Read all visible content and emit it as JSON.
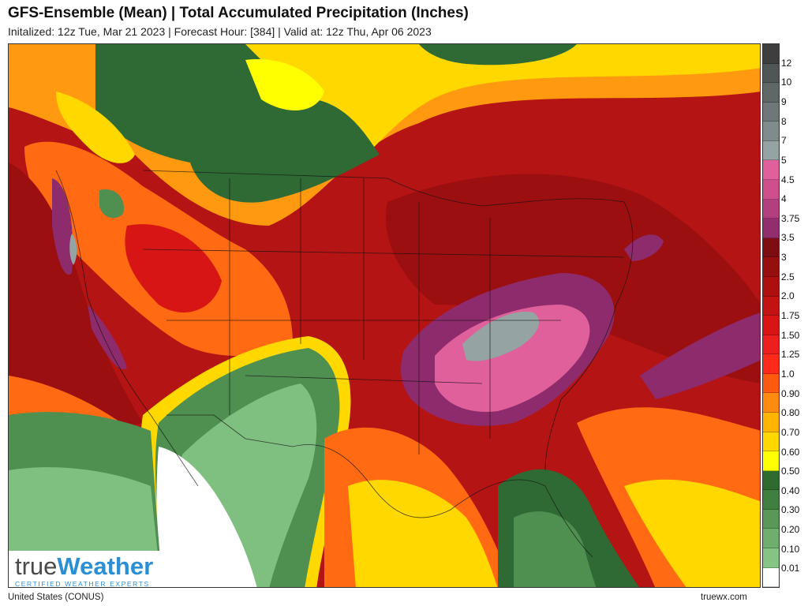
{
  "header": {
    "title": "GFS-Ensemble (Mean) | Total Accumulated Precipitation (Inches)",
    "subtitle": "Initalized: 12z Tue, Mar 21 2023 | Forecast Hour: [384] | Valid at: 12z Thu, Apr 06 2023"
  },
  "logo": {
    "word_part1": "true",
    "word_part2": "Weather",
    "tagline": "CERTIFIED WEATHER EXPERTS"
  },
  "footer": {
    "region": "United States (CONUS)",
    "site": "truewx.com"
  },
  "legend": {
    "bins": [
      {
        "label": "12",
        "color": "#3e3e3e"
      },
      {
        "label": "10",
        "color": "#505656"
      },
      {
        "label": "9",
        "color": "#5f6767"
      },
      {
        "label": "8",
        "color": "#6e7878"
      },
      {
        "label": "7",
        "color": "#808b8b"
      },
      {
        "label": "5",
        "color": "#95a3a3"
      },
      {
        "label": "4.5",
        "color": "#e0609b"
      },
      {
        "label": "4",
        "color": "#cd4f8c"
      },
      {
        "label": "3.75",
        "color": "#b2407e"
      },
      {
        "label": "3.5",
        "color": "#922e6d"
      },
      {
        "label": "3",
        "color": "#7d0d13"
      },
      {
        "label": "2.5",
        "color": "#960e0e"
      },
      {
        "label": "2.0",
        "color": "#ad0f0f"
      },
      {
        "label": "1.75",
        "color": "#c31212"
      },
      {
        "label": "1.50",
        "color": "#d81515"
      },
      {
        "label": "1.25",
        "color": "#ec1e1e"
      },
      {
        "label": "1.0",
        "color": "#ff2a1a"
      },
      {
        "label": "0.90",
        "color": "#ff5a10"
      },
      {
        "label": "0.80",
        "color": "#ff8a10"
      },
      {
        "label": "0.70",
        "color": "#ffb400"
      },
      {
        "label": "0.60",
        "color": "#ffd800"
      },
      {
        "label": "0.50",
        "color": "#ffff00"
      },
      {
        "label": "0.40",
        "color": "#2e6b2e"
      },
      {
        "label": "0.30",
        "color": "#3f7f3f"
      },
      {
        "label": "0.20",
        "color": "#5a985a"
      },
      {
        "label": "0.10",
        "color": "#70ae70"
      },
      {
        "label": "0.01",
        "color": "#86c486"
      },
      {
        "label": "",
        "color": "#ffffff"
      }
    ]
  },
  "map": {
    "colors": {
      "ocean_red": "#c7181a",
      "dark_red": "#9c0f10",
      "deep_red": "#820c0f",
      "orange": "#ff6a12",
      "yellow": "#ffd800",
      "bright_yellow": "#ffff00",
      "dark_green": "#2f6a34",
      "mid_green": "#4f8f50",
      "light_green": "#7fbf7f",
      "magenta": "#8e2b6c",
      "pink": "#e0609b",
      "gray": "#95a3a3",
      "white": "#ffffff"
    }
  }
}
